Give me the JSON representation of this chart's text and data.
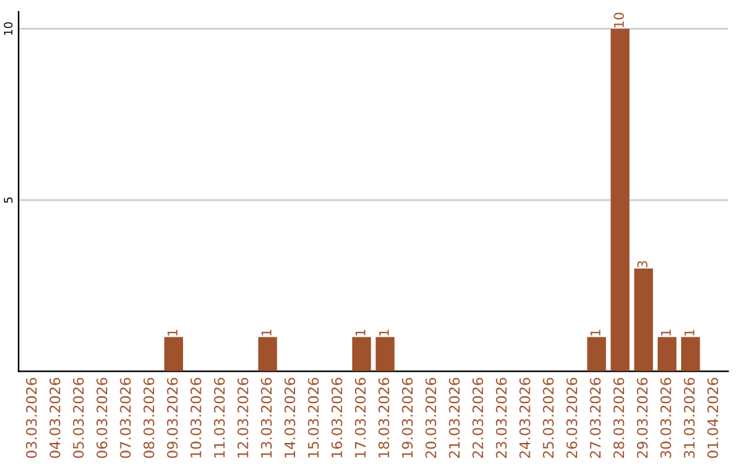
{
  "chart_data": {
    "type": "bar",
    "categories": [
      "03.03.2026",
      "04.03.2026",
      "05.03.2026",
      "06.03.2026",
      "07.03.2026",
      "08.03.2026",
      "09.03.2026",
      "10.03.2026",
      "11.03.2026",
      "12.03.2026",
      "13.03.2026",
      "14.03.2026",
      "15.03.2026",
      "16.03.2026",
      "17.03.2026",
      "18.03.2026",
      "19.03.2026",
      "20.03.2026",
      "21.03.2026",
      "22.03.2026",
      "23.03.2026",
      "24.03.2026",
      "25.03.2026",
      "26.03.2026",
      "27.03.2026",
      "28.03.2026",
      "29.03.2026",
      "30.03.2026",
      "31.03.2026",
      "01.04.2026"
    ],
    "values": [
      0,
      0,
      0,
      0,
      0,
      0,
      1,
      0,
      0,
      0,
      1,
      0,
      0,
      0,
      1,
      1,
      0,
      0,
      0,
      0,
      0,
      0,
      0,
      0,
      1,
      10,
      3,
      1,
      1,
      0
    ],
    "value_labels": [
      null,
      null,
      null,
      null,
      null,
      null,
      "1",
      null,
      null,
      null,
      "1",
      null,
      null,
      null,
      "1",
      "1",
      null,
      null,
      null,
      null,
      null,
      null,
      null,
      null,
      "1",
      "10",
      "3",
      "1",
      "1",
      null
    ],
    "color": "#a0522d",
    "ylim": [
      0,
      10.5
    ],
    "yticks": [
      5,
      10
    ],
    "grid": "y"
  }
}
